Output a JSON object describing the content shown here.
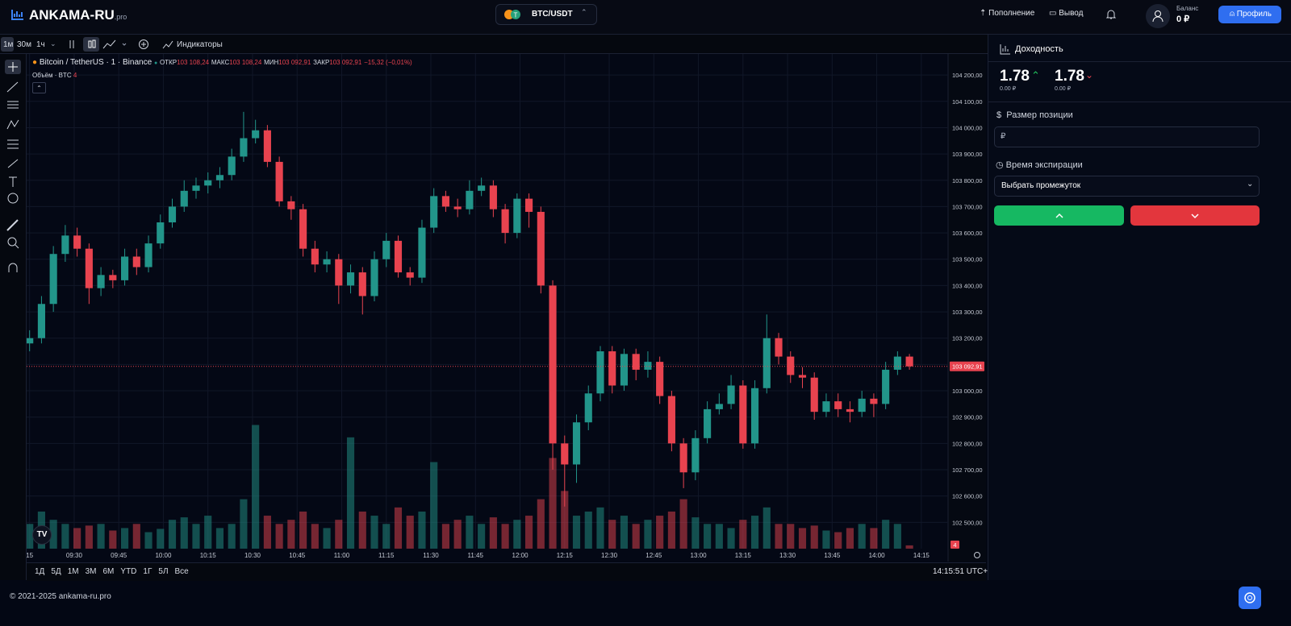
{
  "header": {
    "logo": "ANKAMA-RU",
    "logo_suffix": ".pro",
    "pair": "BTC/USDT",
    "deposit": "Пополнение",
    "withdraw": "Вывод",
    "balance_label": "Баланс",
    "balance": "0 ₽",
    "profile": "Профиль"
  },
  "toolbar": {
    "intervals": [
      "1м",
      "30м",
      "1ч"
    ],
    "indicators": "Индикаторы"
  },
  "chart_data": {
    "type": "candlestick",
    "title": "Bitcoin / TetherUS · 1 · Binance",
    "legend": {
      "open_label": "ОТКР",
      "open": "103 108,24",
      "high_label": "МАКС",
      "high": "103 108,24",
      "low_label": "МИН",
      "low": "103 092,91",
      "close_label": "ЗАКР",
      "close": "103 092,91",
      "change": "−15,32 (−0,01%)",
      "volume_title": "Объём · BTC"
    },
    "up_color": "#22958a",
    "down_color": "#e8434f",
    "xlim": [
      "09:14",
      "14:24"
    ],
    "xticks": [
      {
        "value": "09:15",
        "label": "15"
      },
      "09:30",
      "09:45",
      "10:00",
      "10:15",
      "10:30",
      "10:45",
      "11:00",
      "11:15",
      "11:30",
      "11:45",
      "12:00",
      "12:15",
      "12:30",
      "12:45",
      "13:00",
      "13:15",
      "13:30",
      "13:45",
      "14:00",
      "14:15"
    ],
    "ylim": [
      102400,
      104280
    ],
    "yticks": [
      {
        "value": 102500,
        "label": "102 500,00"
      },
      {
        "value": 102600,
        "label": "102 600,00"
      },
      {
        "value": 102700,
        "label": "102 700,00"
      },
      {
        "value": 102800,
        "label": "102 800,00"
      },
      {
        "value": 102900,
        "label": "102 900,00"
      },
      {
        "value": 103000,
        "label": "103 000,00"
      },
      {
        "value": 103100,
        "label": "103 100,00"
      },
      {
        "value": 103200,
        "label": "103 200,00"
      },
      {
        "value": 103300,
        "label": "103 300,00"
      },
      {
        "value": 103400,
        "label": "103 400,00"
      },
      {
        "value": 103500,
        "label": "103 500,00"
      },
      {
        "value": 103600,
        "label": "103 600,00"
      },
      {
        "value": 103700,
        "label": "103 700,00"
      },
      {
        "value": 103800,
        "label": "103 800,00"
      },
      {
        "value": 103900,
        "label": "103 900,00"
      },
      {
        "value": 104000,
        "label": "104 000,00"
      },
      {
        "value": 104100,
        "label": "104 100,00"
      },
      {
        "value": 104200,
        "label": "104 200,00"
      }
    ],
    "volume_lim": [
      0,
      150
    ],
    "last_price": {
      "value": 103092.91,
      "label": "103 092,91"
    },
    "x": [
      "09:15",
      "09:19",
      "09:23",
      "09:27",
      "09:31",
      "09:35",
      "09:39",
      "09:43",
      "09:47",
      "09:51",
      "09:55",
      "09:59",
      "10:03",
      "10:07",
      "10:11",
      "10:15",
      "10:19",
      "10:23",
      "10:27",
      "10:31",
      "10:35",
      "10:39",
      "10:43",
      "10:47",
      "10:51",
      "10:55",
      "10:59",
      "11:03",
      "11:07",
      "11:11",
      "11:15",
      "11:19",
      "11:23",
      "11:27",
      "11:31",
      "11:35",
      "11:39",
      "11:43",
      "11:47",
      "11:51",
      "11:55",
      "11:59",
      "12:03",
      "12:07",
      "12:11",
      "12:15",
      "12:19",
      "12:23",
      "12:27",
      "12:31",
      "12:35",
      "12:39",
      "12:43",
      "12:47",
      "12:51",
      "12:55",
      "12:59",
      "13:03",
      "13:07",
      "13:11",
      "13:15",
      "13:19",
      "13:23",
      "13:27",
      "13:31",
      "13:35",
      "13:39",
      "13:43",
      "13:47",
      "13:51",
      "13:55",
      "13:59",
      "14:03",
      "14:07",
      "14:11"
    ],
    "open": [
      103180,
      103200,
      103330,
      103520,
      103590,
      103540,
      103390,
      103440,
      103420,
      103510,
      103470,
      103560,
      103640,
      103700,
      103760,
      103780,
      103800,
      103820,
      103890,
      103960,
      103990,
      103870,
      103720,
      103690,
      103540,
      103480,
      103500,
      103400,
      103450,
      103360,
      103500,
      103570,
      103450,
      103430,
      103620,
      103740,
      103700,
      103690,
      103760,
      103780,
      103690,
      103600,
      103730,
      103680,
      103400,
      102800,
      102720,
      102880,
      102990,
      103150,
      103020,
      103140,
      103080,
      103110,
      102980,
      102800,
      102690,
      102820,
      102930,
      102950,
      103020,
      102800,
      103010,
      103200,
      103130,
      103060,
      103050,
      102920,
      102960,
      102930,
      102920,
      102970,
      102950,
      103080,
      103130
    ],
    "high": [
      103230,
      103360,
      103550,
      103630,
      103620,
      103560,
      103470,
      103460,
      103540,
      103540,
      103590,
      103670,
      103730,
      103800,
      103810,
      103830,
      103850,
      103920,
      104060,
      104030,
      104010,
      103890,
      103740,
      103710,
      103570,
      103530,
      103520,
      103480,
      103470,
      103530,
      103600,
      103590,
      103470,
      103650,
      103770,
      103760,
      103730,
      103800,
      103810,
      103800,
      103710,
      103750,
      103750,
      103700,
      103420,
      102830,
      102910,
      103020,
      103170,
      103170,
      103160,
      103160,
      103150,
      103130,
      103000,
      102820,
      102850,
      102960,
      102990,
      103060,
      103040,
      103040,
      103290,
      103220,
      103150,
      103090,
      103070,
      102990,
      102990,
      102960,
      103000,
      102990,
      103110,
      103150,
      103140
    ],
    "low": [
      103150,
      103180,
      103300,
      103490,
      103510,
      103330,
      103360,
      103390,
      103400,
      103440,
      103450,
      103540,
      103620,
      103680,
      103730,
      103750,
      103770,
      103800,
      103870,
      103940,
      103850,
      103700,
      103650,
      103510,
      103450,
      103450,
      103330,
      103370,
      103290,
      103340,
      103470,
      103430,
      103400,
      103410,
      103600,
      103680,
      103660,
      103670,
      103740,
      103660,
      103560,
      103580,
      103620,
      103370,
      102700,
      102560,
      102650,
      102850,
      102960,
      102990,
      103000,
      103040,
      103050,
      102950,
      102770,
      102630,
      102660,
      102800,
      102910,
      102930,
      102780,
      102780,
      102990,
      103100,
      103030,
      103010,
      102890,
      102900,
      102900,
      102880,
      102900,
      102900,
      102930,
      103060,
      103080
    ],
    "close": [
      103200,
      103330,
      103520,
      103590,
      103540,
      103390,
      103440,
      103420,
      103510,
      103470,
      103560,
      103640,
      103700,
      103760,
      103780,
      103800,
      103820,
      103890,
      103960,
      103990,
      103870,
      103720,
      103690,
      103540,
      103480,
      103500,
      103400,
      103450,
      103360,
      103500,
      103570,
      103450,
      103430,
      103620,
      103740,
      103700,
      103690,
      103760,
      103780,
      103690,
      103600,
      103730,
      103680,
      103400,
      102800,
      102720,
      102880,
      102990,
      103150,
      103020,
      103140,
      103080,
      103110,
      102980,
      102800,
      102690,
      102820,
      102930,
      102950,
      103020,
      102800,
      103010,
      103200,
      103130,
      103060,
      103050,
      102920,
      102960,
      102930,
      102920,
      102970,
      102950,
      103080,
      103130,
      103092.91
    ],
    "volume": [
      30,
      45,
      35,
      30,
      25,
      28,
      30,
      22,
      25,
      30,
      20,
      24,
      35,
      38,
      30,
      40,
      25,
      30,
      60,
      150,
      40,
      30,
      35,
      45,
      30,
      25,
      35,
      135,
      45,
      40,
      30,
      50,
      40,
      45,
      105,
      30,
      35,
      40,
      30,
      38,
      30,
      35,
      40,
      60,
      110,
      70,
      40,
      45,
      50,
      35,
      40,
      30,
      35,
      40,
      45,
      60,
      38,
      30,
      30,
      25,
      35,
      40,
      50,
      30,
      30,
      25,
      28,
      22,
      20,
      25,
      30,
      25,
      35,
      30,
      4
    ]
  },
  "range_bar": {
    "ranges": [
      "1Д",
      "5Д",
      "1М",
      "3М",
      "6М",
      "YTD",
      "1Г",
      "5Л",
      "Все"
    ],
    "clock": "14:15:51 UTC+3"
  },
  "panel": {
    "title": "Доходность",
    "up_value": "1.78",
    "up_amount": "0.00 ₽",
    "down_value": "1.78",
    "down_amount": "0.00 ₽",
    "size_label": "Размер позиции",
    "size_placeholder": "₽",
    "expiry_label": "Время экспирации",
    "expiry_select": "Выбрать промежуток"
  },
  "footer": "© 2021-2025 ankama-ru.pro"
}
